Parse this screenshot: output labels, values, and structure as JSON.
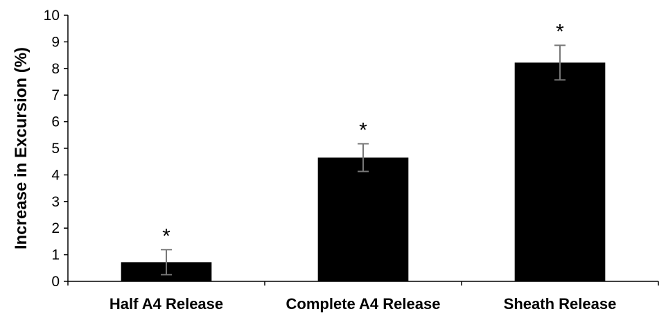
{
  "chart_data": {
    "type": "bar",
    "categories": [
      "Half A4 Release",
      "Complete A4 Release",
      "Sheath Release"
    ],
    "values": [
      0.72,
      4.65,
      8.22
    ],
    "errors": [
      0.47,
      0.52,
      0.65
    ],
    "annotations": [
      "*",
      "*",
      "*"
    ],
    "title": "",
    "xlabel": "",
    "ylabel": "Increase in Excursion (%)",
    "ylim": [
      0,
      10
    ],
    "yticks": [
      "0",
      "1",
      "2",
      "3",
      "4",
      "5",
      "6",
      "7",
      "8",
      "9",
      "10"
    ],
    "grid": false,
    "bar_color": "#000000"
  }
}
